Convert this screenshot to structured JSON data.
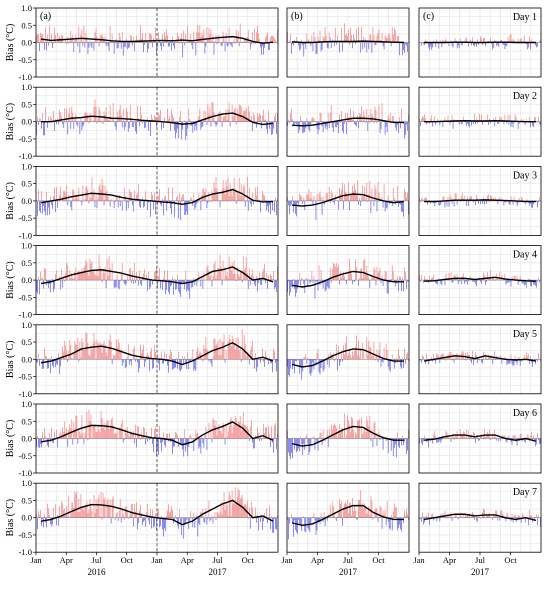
{
  "figure": {
    "panel_labels": [
      "(a)",
      "(b)",
      "(c)"
    ],
    "ylabel": "Bias (°C)",
    "row_labels": [
      "Day 1",
      "Day 2",
      "Day 3",
      "Day 4",
      "Day 5",
      "Day 6",
      "Day 7"
    ],
    "yticks": [
      "1.0",
      "0.5",
      "0.0",
      "-0.5",
      "-1.0"
    ],
    "month_ticks": [
      "Jan",
      "Apr",
      "Jul",
      "Oct"
    ],
    "year_labels": {
      "a_first": "2016",
      "a_second": "2017",
      "b": "2017",
      "c": "2017"
    },
    "colors": {
      "positive": "#f08080",
      "negative": "#5b5be6",
      "trend": "#000000",
      "grid": "#dcdcdc"
    }
  },
  "chart_data": [
    {
      "type": "bar",
      "title": "",
      "ylabel": "Bias (°C)",
      "ylim": [
        -1.0,
        1.0
      ],
      "grid": true,
      "rows": [
        "Day 1",
        "Day 2",
        "Day 3",
        "Day 4",
        "Day 5",
        "Day 6",
        "Day 7"
      ],
      "panels": [
        {
          "panel": "(a)",
          "x_range": [
            "2016-01",
            "2017-12"
          ],
          "xticks": [
            "Jan 2016",
            "Apr 2016",
            "Jul 2016",
            "Oct 2016",
            "Jan 2017",
            "Apr 2017",
            "Jul 2017",
            "Oct 2017"
          ],
          "year_divider": "2017-01",
          "series": [
            {
              "trend": [
                0.1,
                0.06,
                0.08,
                0.1,
                0.12,
                0.1,
                0.08,
                0.05,
                0.03,
                0.03,
                0.04,
                0.05,
                0.06,
                0.05,
                0.07,
                0.05,
                0.09,
                0.12,
                0.15,
                0.17,
                0.12,
                0.03,
                -0.02,
                0.01
              ]
            },
            {
              "trend": [
                0.0,
                0.0,
                0.05,
                0.1,
                0.12,
                0.16,
                0.14,
                0.1,
                0.09,
                0.07,
                0.04,
                0.02,
                0.0,
                -0.03,
                -0.07,
                -0.05,
                0.05,
                0.15,
                0.22,
                0.25,
                0.15,
                -0.02,
                -0.08,
                -0.05
              ]
            },
            {
              "trend": [
                -0.05,
                0.0,
                0.05,
                0.12,
                0.17,
                0.22,
                0.2,
                0.17,
                0.1,
                0.05,
                0.02,
                0.0,
                -0.03,
                -0.05,
                -0.1,
                -0.05,
                0.1,
                0.2,
                0.25,
                0.33,
                0.2,
                0.02,
                -0.03,
                -0.02
              ]
            },
            {
              "trend": [
                -0.1,
                -0.05,
                0.05,
                0.15,
                0.22,
                0.28,
                0.3,
                0.25,
                0.2,
                0.12,
                0.06,
                0.0,
                -0.02,
                -0.05,
                -0.1,
                -0.05,
                0.1,
                0.25,
                0.3,
                0.38,
                0.22,
                0.0,
                0.05,
                -0.05
              ]
            },
            {
              "trend": [
                -0.1,
                -0.05,
                0.05,
                0.15,
                0.3,
                0.35,
                0.38,
                0.32,
                0.22,
                0.12,
                0.06,
                0.02,
                0.0,
                -0.05,
                -0.15,
                -0.05,
                0.1,
                0.25,
                0.35,
                0.48,
                0.3,
                0.0,
                0.06,
                -0.05
              ]
            },
            {
              "trend": [
                -0.1,
                -0.05,
                0.05,
                0.18,
                0.3,
                0.38,
                0.37,
                0.34,
                0.25,
                0.15,
                0.08,
                0.02,
                0.0,
                -0.05,
                -0.18,
                -0.1,
                0.1,
                0.25,
                0.35,
                0.48,
                0.3,
                0.0,
                0.08,
                -0.05
              ]
            },
            {
              "trend": [
                -0.1,
                -0.05,
                0.05,
                0.18,
                0.3,
                0.38,
                0.37,
                0.33,
                0.25,
                0.15,
                0.08,
                0.02,
                -0.02,
                -0.05,
                -0.2,
                -0.1,
                0.1,
                0.25,
                0.4,
                0.5,
                0.3,
                0.0,
                0.05,
                -0.1
              ]
            }
          ]
        },
        {
          "panel": "(b)",
          "x_range": [
            "2017-01",
            "2017-12"
          ],
          "xticks": [
            "Jan",
            "Apr",
            "Jul",
            "Oct"
          ],
          "series": [
            {
              "trend": [
                0.02,
                0.0,
                0.0,
                0.02,
                0.03,
                0.03,
                0.03,
                0.04,
                0.03,
                0.02,
                0.01,
                0.0
              ]
            },
            {
              "trend": [
                -0.1,
                -0.12,
                -0.1,
                -0.05,
                0.0,
                0.05,
                0.1,
                0.1,
                0.08,
                0.03,
                -0.02,
                -0.02
              ]
            },
            {
              "trend": [
                -0.12,
                -0.15,
                -0.12,
                -0.05,
                0.05,
                0.15,
                0.2,
                0.18,
                0.08,
                0.0,
                -0.05,
                -0.02
              ]
            },
            {
              "trend": [
                -0.15,
                -0.2,
                -0.15,
                -0.05,
                0.08,
                0.18,
                0.25,
                0.22,
                0.1,
                0.0,
                -0.05,
                -0.05
              ]
            },
            {
              "trend": [
                -0.15,
                -0.22,
                -0.18,
                -0.05,
                0.1,
                0.22,
                0.3,
                0.28,
                0.15,
                0.02,
                -0.05,
                -0.05
              ]
            },
            {
              "trend": [
                -0.15,
                -0.22,
                -0.18,
                -0.05,
                0.1,
                0.25,
                0.35,
                0.32,
                0.15,
                0.02,
                -0.05,
                -0.05
              ]
            },
            {
              "trend": [
                -0.15,
                -0.22,
                -0.18,
                -0.05,
                0.1,
                0.25,
                0.35,
                0.35,
                0.15,
                0.02,
                -0.05,
                -0.05
              ]
            }
          ]
        },
        {
          "panel": "(c)",
          "x_range": [
            "2017-01",
            "2017-12"
          ],
          "xticks": [
            "Jan",
            "Apr",
            "Jul",
            "Oct"
          ],
          "series": [
            {
              "trend": [
                0.0,
                0.0,
                0.0,
                0.01,
                0.01,
                0.0,
                0.0,
                0.01,
                0.01,
                0.0,
                0.0,
                0.0
              ]
            },
            {
              "trend": [
                0.0,
                0.0,
                0.01,
                0.02,
                0.03,
                0.02,
                0.02,
                0.03,
                0.02,
                0.01,
                0.0,
                0.0
              ]
            },
            {
              "trend": [
                -0.02,
                -0.02,
                0.0,
                0.02,
                0.02,
                0.02,
                0.03,
                0.02,
                0.01,
                0.0,
                -0.02,
                -0.02
              ]
            },
            {
              "trend": [
                -0.03,
                -0.02,
                0.02,
                0.05,
                0.05,
                0.02,
                0.05,
                0.08,
                0.03,
                0.0,
                -0.02,
                -0.03
              ]
            },
            {
              "trend": [
                -0.05,
                0.0,
                0.05,
                0.1,
                0.08,
                0.02,
                0.1,
                0.05,
                0.0,
                -0.02,
                0.0,
                -0.05
              ]
            },
            {
              "trend": [
                -0.05,
                -0.02,
                0.05,
                0.1,
                0.1,
                0.05,
                0.1,
                0.1,
                0.0,
                -0.05,
                0.0,
                -0.08
              ]
            },
            {
              "trend": [
                -0.05,
                0.0,
                0.05,
                0.1,
                0.1,
                0.05,
                0.08,
                0.08,
                0.0,
                -0.05,
                0.0,
                -0.08
              ]
            }
          ]
        }
      ]
    }
  ]
}
